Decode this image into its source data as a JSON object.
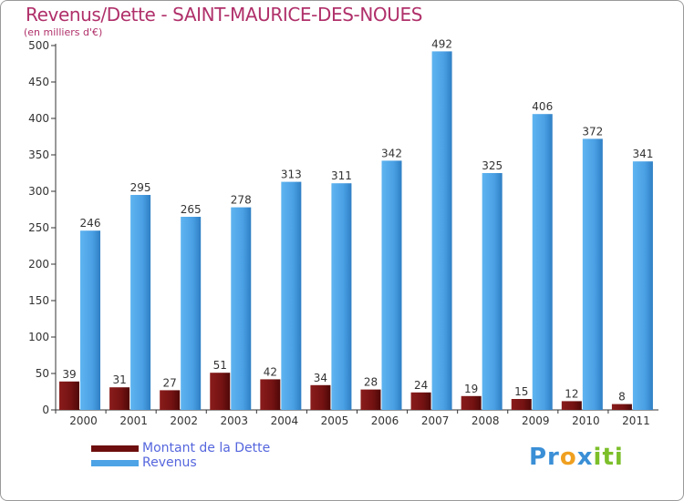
{
  "header": {
    "title": "Revenus/Dette - SAINT-MAURICE-DES-NOUES",
    "subtitle": "(en milliers d'€)"
  },
  "legend": {
    "dette_label": "Montant de la Dette",
    "revenus_label": "Revenus"
  },
  "logo": {
    "text_pr": "Pr",
    "text_o": "o",
    "text_x": "x",
    "text_iti": "iti"
  },
  "colors": {
    "dette": "#7a1414",
    "revenus": "#4da3e6",
    "title": "#b0306a"
  },
  "chart_data": {
    "type": "bar",
    "categories": [
      "2000",
      "2001",
      "2002",
      "2003",
      "2004",
      "2005",
      "2006",
      "2007",
      "2008",
      "2009",
      "2010",
      "2011"
    ],
    "series": [
      {
        "name": "Montant de la Dette",
        "values": [
          39,
          31,
          27,
          51,
          42,
          34,
          28,
          24,
          19,
          15,
          12,
          8
        ]
      },
      {
        "name": "Revenus",
        "values": [
          246,
          295,
          265,
          278,
          313,
          311,
          342,
          492,
          325,
          406,
          372,
          341
        ]
      }
    ],
    "title": "Revenus/Dette - SAINT-MAURICE-DES-NOUES",
    "ylabel": "(en milliers d'€)",
    "ylim": [
      0,
      500
    ],
    "yticks": [
      0,
      50,
      100,
      150,
      200,
      250,
      300,
      350,
      400,
      450,
      500
    ],
    "grid": false
  }
}
